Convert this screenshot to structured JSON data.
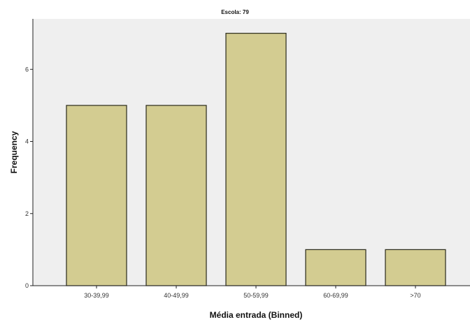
{
  "chart_data": {
    "type": "bar",
    "title": "Escola: 79",
    "xlabel": "Média entrada (Binned)",
    "ylabel": "Frequency",
    "categories": [
      "30-39,99",
      "40-49,99",
      "50-59,99",
      "60-69,99",
      ">70"
    ],
    "values": [
      5,
      5,
      7,
      1,
      1
    ],
    "ylim": [
      0,
      7.4
    ],
    "yticks": [
      "0",
      "2",
      "4",
      "6"
    ],
    "grid": false,
    "legend": "none",
    "colors": {
      "bar_fill": "#d3cc91",
      "bar_stroke": "#2a2a1a",
      "plot_background": "#efefef"
    }
  }
}
